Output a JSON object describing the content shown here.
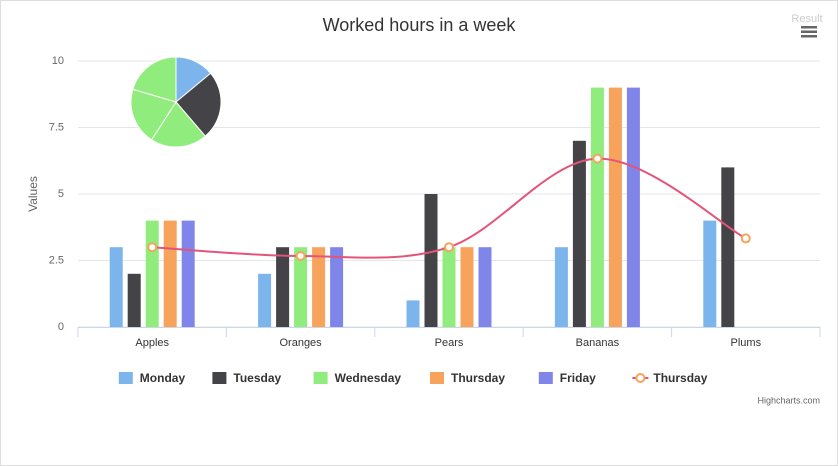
{
  "chart_data": {
    "type": "combo",
    "title": "Worked hours in a week",
    "corner_text": "Result",
    "credits": "Highcharts.com",
    "y_label": "Values",
    "categories": [
      "Apples",
      "Oranges",
      "Pears",
      "Bananas",
      "Plums"
    ],
    "ylim": [
      0,
      10
    ],
    "yticks": [
      0,
      2.5,
      5,
      7.5,
      10
    ],
    "grid": true,
    "legend": "bottom",
    "series": [
      {
        "name": "Monday",
        "type": "column",
        "color": "#7cb5ec",
        "values": [
          3,
          2,
          1,
          3,
          4
        ]
      },
      {
        "name": "Tuesday",
        "type": "column",
        "color": "#434348",
        "values": [
          2,
          3,
          5,
          7,
          6
        ]
      },
      {
        "name": "Wednesday",
        "type": "column",
        "color": "#90ed7d",
        "values": [
          4,
          3,
          3,
          9,
          null
        ]
      },
      {
        "name": "Thursday",
        "type": "column",
        "color": "#f7a35c",
        "values": [
          4,
          3,
          3,
          9,
          null
        ]
      },
      {
        "name": "Friday",
        "type": "column",
        "color": "#8085e9",
        "values": [
          4,
          3,
          3,
          9,
          null
        ]
      },
      {
        "name": "Thursday",
        "type": "spline",
        "color": "#e4547a",
        "marker_color": "#f7a35c",
        "values": [
          3,
          2.67,
          3,
          6.33,
          3.33
        ]
      }
    ],
    "pie": {
      "values": [
        13,
        23,
        19,
        19,
        19
      ],
      "colors": [
        "#7cb5ec",
        "#434348",
        "#90ed7d",
        "#90ed7d",
        "#90ed7d"
      ]
    }
  }
}
